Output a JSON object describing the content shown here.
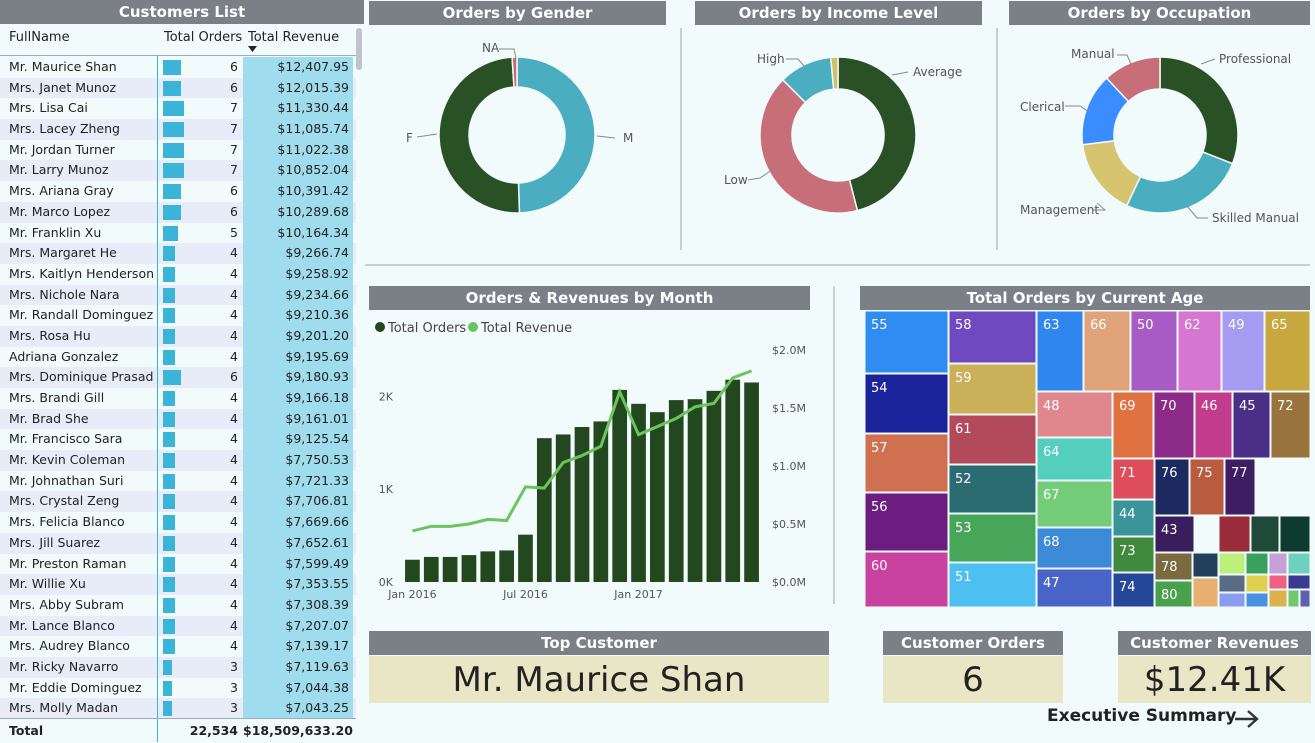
{
  "customers_list": {
    "title": "Customers List",
    "columns": [
      "FullName",
      "Total Orders",
      "Total Revenue"
    ],
    "sort_icon": "sort-descending-icon",
    "rows": [
      {
        "name": "Mr. Maurice Shan",
        "orders": 6,
        "revenue": "$12,407.95",
        "rev_num": 12407.95
      },
      {
        "name": "Mrs. Janet Munoz",
        "orders": 6,
        "revenue": "$12,015.39",
        "rev_num": 12015.39
      },
      {
        "name": "Mrs. Lisa Cai",
        "orders": 7,
        "revenue": "$11,330.44",
        "rev_num": 11330.44
      },
      {
        "name": "Mrs. Lacey Zheng",
        "orders": 7,
        "revenue": "$11,085.74",
        "rev_num": 11085.74
      },
      {
        "name": "Mr. Jordan Turner",
        "orders": 7,
        "revenue": "$11,022.38",
        "rev_num": 11022.38
      },
      {
        "name": "Mr. Larry Munoz",
        "orders": 7,
        "revenue": "$10,852.04",
        "rev_num": 10852.04
      },
      {
        "name": "Mrs. Ariana Gray",
        "orders": 6,
        "revenue": "$10,391.42",
        "rev_num": 10391.42
      },
      {
        "name": "Mr. Marco Lopez",
        "orders": 6,
        "revenue": "$10,289.68",
        "rev_num": 10289.68
      },
      {
        "name": "Mr. Franklin Xu",
        "orders": 5,
        "revenue": "$10,164.34",
        "rev_num": 10164.34
      },
      {
        "name": "Mrs. Margaret He",
        "orders": 4,
        "revenue": "$9,266.74",
        "rev_num": 9266.74
      },
      {
        "name": "Mrs. Kaitlyn Henderson",
        "orders": 4,
        "revenue": "$9,258.92",
        "rev_num": 9258.92
      },
      {
        "name": "Mrs. Nichole Nara",
        "orders": 4,
        "revenue": "$9,234.66",
        "rev_num": 9234.66
      },
      {
        "name": "Mr. Randall Dominguez",
        "orders": 4,
        "revenue": "$9,210.36",
        "rev_num": 9210.36
      },
      {
        "name": "Mrs. Rosa Hu",
        "orders": 4,
        "revenue": "$9,201.20",
        "rev_num": 9201.2
      },
      {
        "name": "Adriana Gonzalez",
        "orders": 4,
        "revenue": "$9,195.69",
        "rev_num": 9195.69
      },
      {
        "name": "Mrs. Dominique Prasad",
        "orders": 6,
        "revenue": "$9,180.93",
        "rev_num": 9180.93
      },
      {
        "name": "Mrs. Brandi Gill",
        "orders": 4,
        "revenue": "$9,166.18",
        "rev_num": 9166.18
      },
      {
        "name": "Mr. Brad She",
        "orders": 4,
        "revenue": "$9,161.01",
        "rev_num": 9161.01
      },
      {
        "name": "Mr. Francisco Sara",
        "orders": 4,
        "revenue": "$9,125.54",
        "rev_num": 9125.54
      },
      {
        "name": "Mr. Kevin Coleman",
        "orders": 4,
        "revenue": "$7,750.53",
        "rev_num": 7750.53
      },
      {
        "name": "Mr. Johnathan Suri",
        "orders": 4,
        "revenue": "$7,721.33",
        "rev_num": 7721.33
      },
      {
        "name": "Mrs. Crystal Zeng",
        "orders": 4,
        "revenue": "$7,706.81",
        "rev_num": 7706.81
      },
      {
        "name": "Mrs. Felicia Blanco",
        "orders": 4,
        "revenue": "$7,669.66",
        "rev_num": 7669.66
      },
      {
        "name": "Mrs. Jill Suarez",
        "orders": 4,
        "revenue": "$7,652.61",
        "rev_num": 7652.61
      },
      {
        "name": "Mr. Preston Raman",
        "orders": 4,
        "revenue": "$7,599.49",
        "rev_num": 7599.49
      },
      {
        "name": "Mr. Willie Xu",
        "orders": 4,
        "revenue": "$7,353.55",
        "rev_num": 7353.55
      },
      {
        "name": "Mrs. Abby Subram",
        "orders": 4,
        "revenue": "$7,308.39",
        "rev_num": 7308.39
      },
      {
        "name": "Mr. Lance Blanco",
        "orders": 4,
        "revenue": "$7,207.07",
        "rev_num": 7207.07
      },
      {
        "name": "Mrs. Audrey Blanco",
        "orders": 4,
        "revenue": "$7,139.17",
        "rev_num": 7139.17
      },
      {
        "name": "Mr. Ricky Navarro",
        "orders": 3,
        "revenue": "$7,119.63",
        "rev_num": 7119.63
      },
      {
        "name": "Mr. Eddie Dominguez",
        "orders": 3,
        "revenue": "$7,044.38",
        "rev_num": 7044.38
      },
      {
        "name": "Mrs. Molly Madan",
        "orders": 3,
        "revenue": "$7,043.25",
        "rev_num": 7043.25
      }
    ],
    "total_label": "Total",
    "total_orders": "22,534",
    "total_revenue": "$18,509,633.20",
    "colors": {
      "bar": "#3ab5d8",
      "revenue_bg": "#9fdced"
    }
  },
  "kpis": {
    "top_customer_title": "Top Customer",
    "top_customer_value": "Mr. Maurice Shan",
    "customer_orders_title": "Customer Orders",
    "customer_orders_value": "6",
    "customer_revenues_title": "Customer Revenues",
    "customer_revenues_value": "$12.41K"
  },
  "nav": {
    "executive_summary": "Executive Summary",
    "icon": "arrow-right-icon"
  },
  "chart_data": [
    {
      "type": "pie",
      "title": "Orders by Gender",
      "donut": true,
      "labels": [
        "M",
        "F",
        "NA"
      ],
      "values": [
        49.5,
        49.5,
        1.0
      ],
      "colors": [
        "#4aaec0",
        "#2a5125",
        "#c96b73"
      ]
    },
    {
      "type": "pie",
      "title": "Orders by Income Level",
      "donut": true,
      "labels": [
        "Average",
        "Low",
        "High"
      ],
      "values": [
        46,
        41.5,
        11
      ],
      "extra_slice": {
        "value": 1.5,
        "color": "#d2c068"
      },
      "colors": [
        "#2a5125",
        "#c86e79",
        "#4aaec0"
      ]
    },
    {
      "type": "pie",
      "title": "Orders by Occupation",
      "donut": true,
      "labels": [
        "Professional",
        "Skilled Manual",
        "Management",
        "Clerical",
        "Manual"
      ],
      "values": [
        31,
        26,
        16,
        15,
        12
      ],
      "colors": [
        "#2a5125",
        "#4aaec0",
        "#d7c46e",
        "#3b8cff",
        "#c86e79"
      ]
    },
    {
      "type": "bar",
      "title": "Orders & Revenues by Month",
      "legend": [
        "Total Orders",
        "Total Revenue"
      ],
      "legend_position": "top-left",
      "colors": {
        "orders": "#23471e",
        "revenue": "#6cc45c"
      },
      "x_ticks": [
        "Jan 2016",
        "Jul 2016",
        "Jan 2017"
      ],
      "y_left_ticks": [
        "0K",
        "1K",
        "2K"
      ],
      "y_right_ticks": [
        "$0.0M",
        "$0.5M",
        "$1.0M",
        "$1.5M",
        "$2.0M"
      ],
      "ylim_left": [
        0,
        2500
      ],
      "ylim_right": [
        0,
        2000000
      ],
      "months": [
        "2016-01",
        "2016-02",
        "2016-03",
        "2016-04",
        "2016-05",
        "2016-06",
        "2016-07",
        "2016-08",
        "2016-09",
        "2016-10",
        "2016-11",
        "2016-12",
        "2017-01",
        "2017-02",
        "2017-03",
        "2017-04",
        "2017-05",
        "2017-06",
        "2017-07"
      ],
      "orders": [
        240,
        270,
        270,
        290,
        330,
        340,
        510,
        1550,
        1590,
        1670,
        1730,
        2070,
        1920,
        1830,
        1960,
        1970,
        2060,
        2180,
        2150
      ],
      "revenue": [
        440000,
        480000,
        480000,
        500000,
        540000,
        530000,
        820000,
        810000,
        1030000,
        1090000,
        1170000,
        1640000,
        1270000,
        1340000,
        1410000,
        1510000,
        1540000,
        1760000,
        1820000
      ]
    },
    {
      "type": "heatmap",
      "subtype": "treemap",
      "title": "Total Orders by Current Age",
      "labels": [
        "55",
        "58",
        "63",
        "66",
        "50",
        "62",
        "49",
        "65",
        "54",
        "59",
        "57",
        "61",
        "48",
        "69",
        "70",
        "46",
        "45",
        "72",
        "64",
        "56",
        "52",
        "71",
        "76",
        "75",
        "77",
        "67",
        "44",
        "53",
        "43",
        "60",
        "68",
        "73",
        "78",
        "51",
        "47",
        "74",
        "80"
      ],
      "colors": [
        "#2f8cf0",
        "#6e49c0",
        "#2f86ee",
        "#e1a37a",
        "#a85bc4",
        "#d676d0",
        "#a59bf0",
        "#c8a73e",
        "#1a239a",
        "#cbb05a",
        "#cf7050",
        "#b34a5c",
        "#e0878d",
        "#df7240",
        "#8b2a87",
        "#c33b8d",
        "#4b2e86",
        "#99733e",
        "#54cfbe",
        "#6b1d80",
        "#2b6b72",
        "#de4e5a",
        "#1c2a60",
        "#b85b3e",
        "#3d1e63",
        "#72cc78",
        "#3a9498",
        "#48a65a",
        "#3a1e5c",
        "#c9429f",
        "#3c8ad8",
        "#3f8a3c",
        "#7a6a40",
        "#4dbff0",
        "#4864c8",
        "#25479a",
        "#4aa04c"
      ]
    }
  ]
}
